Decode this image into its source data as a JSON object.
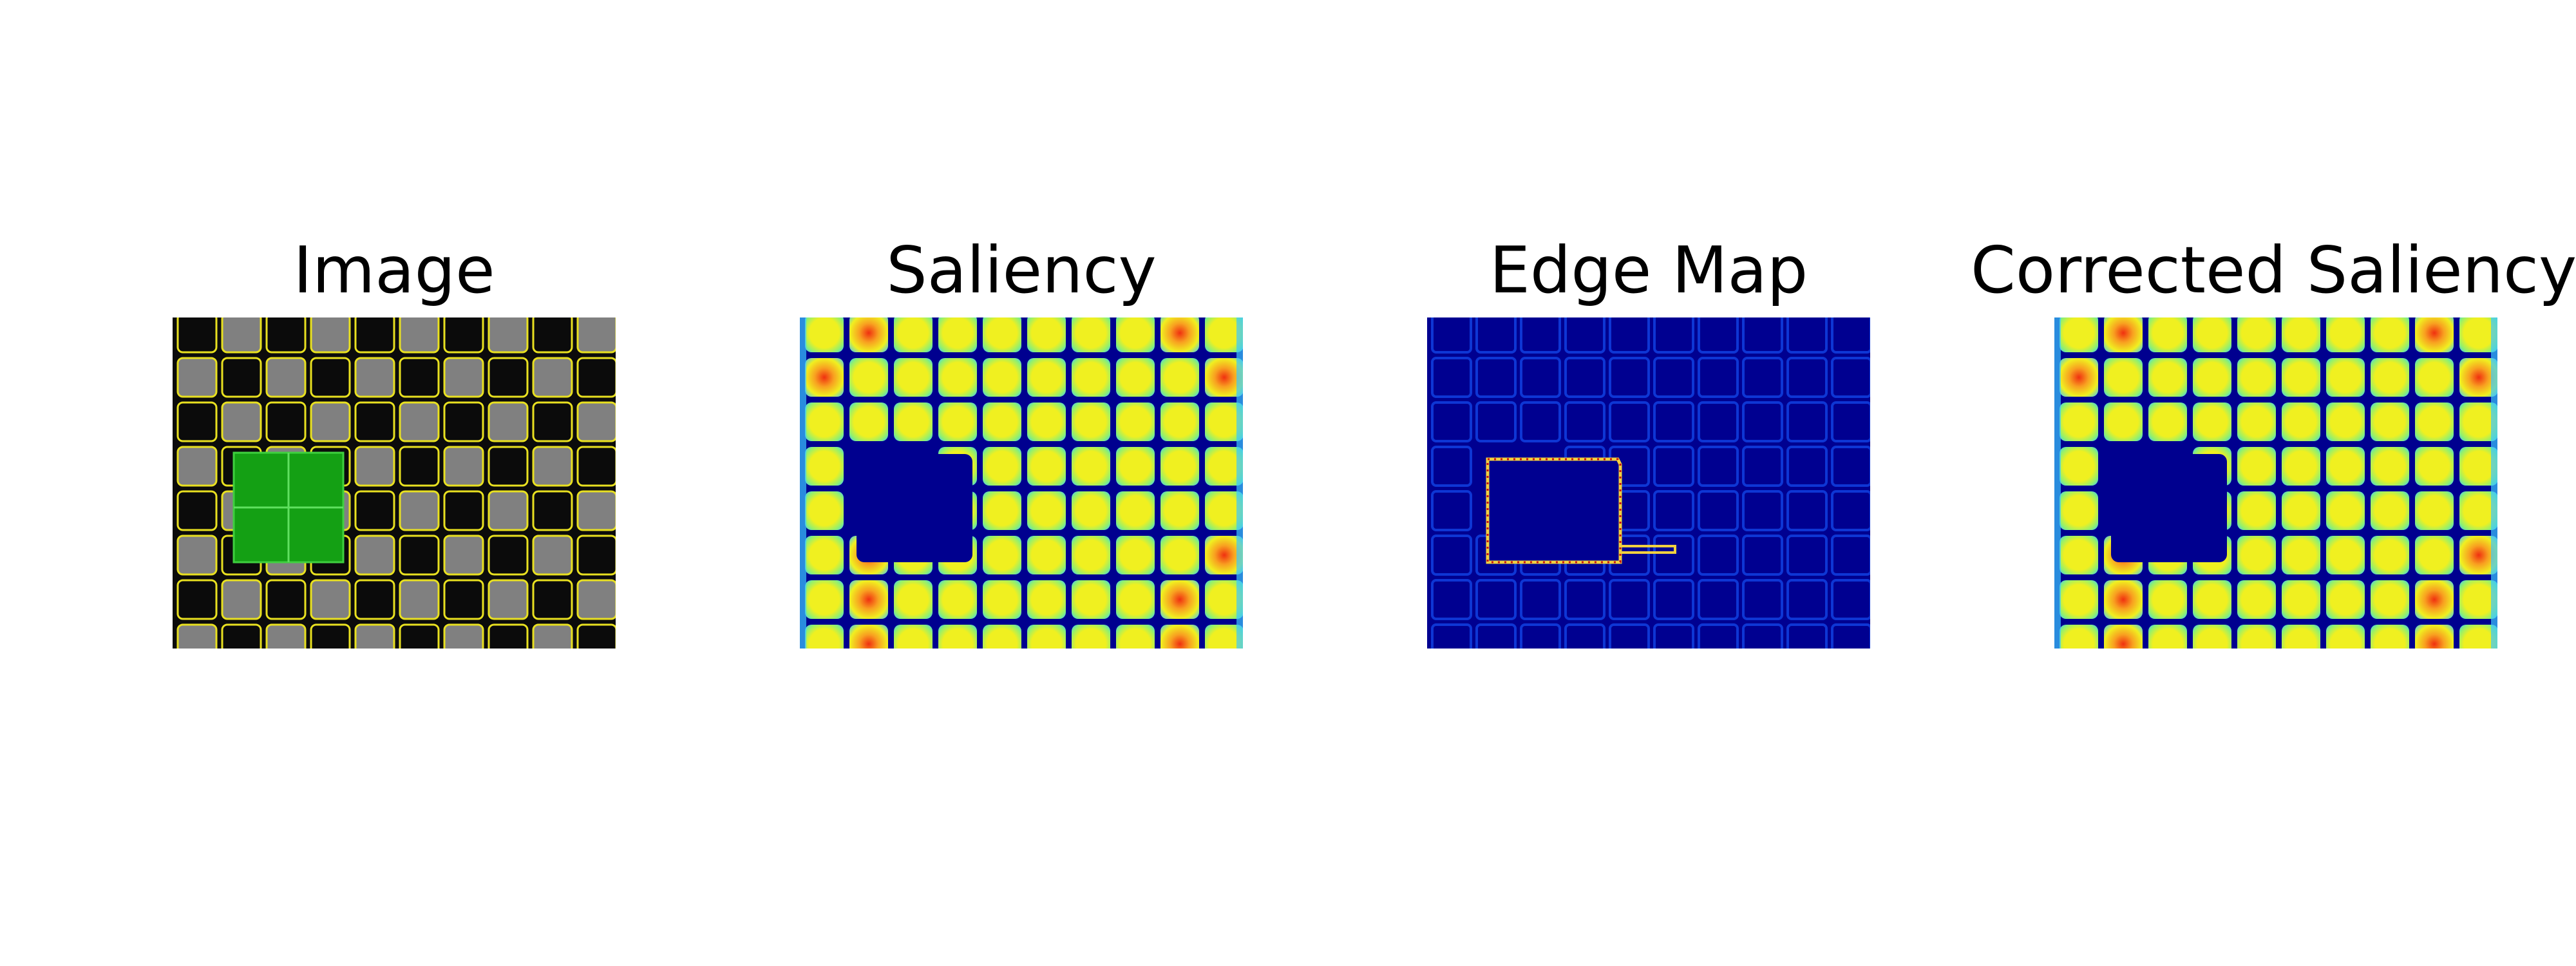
{
  "figure": {
    "panels": [
      {
        "title": "Image"
      },
      {
        "title": "Saliency"
      },
      {
        "title": "Edge Map"
      },
      {
        "title": "Corrected Saliency"
      }
    ]
  },
  "colors": {
    "background": "#ffffff",
    "title_text": "#000000",
    "image_dark_cell": "#0b0b0b",
    "image_gray_cell": "#808080",
    "image_outline": "#e8e020",
    "image_highlight": "#14a014",
    "saliency_background": "#00008f",
    "saliency_cell_outer": "#3ac8ff",
    "saliency_cell_mid": "#90f070",
    "saliency_cell_inner": "#f0f020",
    "saliency_hotspot": "#f03010",
    "edge_background": "#000090",
    "edge_line": "#1040e0",
    "edge_highlight_outline": "#f0d040",
    "edge_highlight_dots": "#c81010"
  }
}
